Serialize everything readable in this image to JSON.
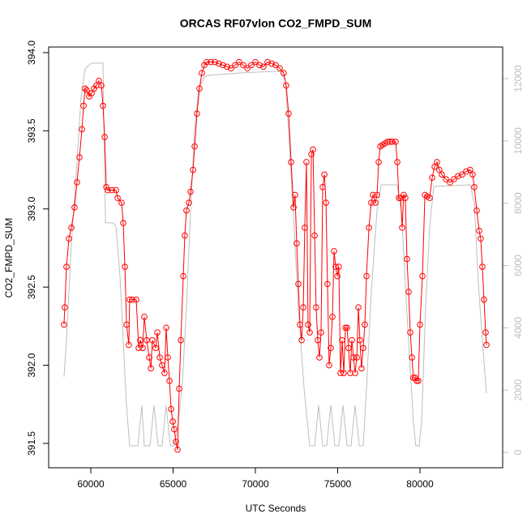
{
  "chart_data": {
    "type": "line",
    "title": "ORCAS RF07vlon CO2_FMPD_SUM",
    "x_label": "UTC Seconds",
    "y_label": "CO2_FMPD_SUM",
    "xlim": [
      57438,
      85025
    ],
    "xticks": [
      60000,
      65000,
      70000,
      75000,
      80000
    ],
    "ylim": [
      391.344,
      394.036
    ],
    "yticks": [
      391.5,
      {
        "value": 392,
        "label": "392.0"
      },
      392.5,
      {
        "value": 393,
        "label": "393.0"
      },
      393.5,
      {
        "value": 394,
        "label": "394.0"
      }
    ],
    "y2lim": [
      -495,
      13016
    ],
    "y2ticks": [
      0,
      2000,
      4000,
      6000,
      8000,
      10000,
      12000
    ],
    "series": [
      {
        "color": "#bebebe",
        "axis": "y2",
        "markers": false,
        "x": [
          58370,
          58520,
          58820,
          59160,
          59410,
          59650,
          60050,
          60740,
          60890,
          61380,
          61530,
          61770,
          61970,
          62170,
          62360,
          62610,
          62860,
          63100,
          63250,
          63600,
          63840,
          64090,
          64330,
          64580,
          64830,
          65070,
          65320,
          65570,
          65810,
          66060,
          66310,
          66550,
          66900,
          67190,
          69260,
          71480,
          71820,
          72070,
          72320,
          72610,
          72960,
          73300,
          73600,
          73840,
          74090,
          74330,
          74580,
          74830,
          75070,
          75320,
          75570,
          75810,
          76060,
          76310,
          76550,
          76750,
          77040,
          77390,
          77640,
          78620,
          78870,
          79110,
          79360,
          79600,
          79750,
          79950,
          80100,
          80340,
          80590,
          80840,
          83050,
          83300,
          83550,
          83790,
          84040
        ],
        "values": [
          2420,
          3590,
          6720,
          9320,
          11410,
          12320,
          12500,
          12500,
          7370,
          7370,
          7240,
          5680,
          3590,
          1510,
          210,
          210,
          210,
          1510,
          210,
          210,
          1510,
          210,
          210,
          1510,
          210,
          210,
          990,
          2290,
          4640,
          7760,
          10360,
          11670,
          12060,
          12110,
          12190,
          12240,
          11930,
          9840,
          7500,
          4640,
          2030,
          210,
          210,
          1510,
          210,
          210,
          1510,
          210,
          210,
          1510,
          210,
          210,
          1510,
          210,
          210,
          2030,
          5160,
          7760,
          8590,
          8590,
          7760,
          5420,
          3070,
          990,
          210,
          210,
          990,
          4640,
          7240,
          8540,
          8590,
          8020,
          5420,
          3590,
          1900
        ]
      },
      {
        "color": "#ff0000",
        "markers": true,
        "x": [
          58370,
          58420,
          58520,
          58670,
          58820,
          59010,
          59160,
          59310,
          59460,
          59560,
          59650,
          59750,
          59900,
          60050,
          60200,
          60340,
          60490,
          60640,
          60740,
          60840,
          60940,
          61030,
          61280,
          61530,
          61630,
          61870,
          61970,
          62070,
          62170,
          62310,
          62360,
          62510,
          62760,
          62910,
          63000,
          63150,
          63250,
          63400,
          63550,
          63650,
          63740,
          63940,
          64040,
          64190,
          64330,
          64480,
          64580,
          64680,
          64780,
          64880,
          64980,
          65070,
          65170,
          65270,
          65370,
          65470,
          65620,
          65710,
          65810,
          65960,
          66060,
          66210,
          66310,
          66450,
          66600,
          66750,
          66900,
          67040,
          67290,
          67540,
          67780,
          68030,
          68280,
          68520,
          68770,
          69010,
          69260,
          69510,
          69750,
          70000,
          70250,
          70490,
          70740,
          70990,
          71230,
          71480,
          71720,
          71870,
          72020,
          72170,
          72320,
          72410,
          72510,
          72610,
          72710,
          72810,
          72910,
          73000,
          73100,
          73200,
          73300,
          73400,
          73500,
          73600,
          73690,
          73790,
          73890,
          73990,
          74090,
          74190,
          74290,
          74380,
          74480,
          74580,
          74680,
          74780,
          74880,
          74980,
          75070,
          75170,
          75270,
          75370,
          75470,
          75570,
          75660,
          75760,
          75860,
          75960,
          76060,
          76160,
          76260,
          76350,
          76450,
          76550,
          76650,
          76750,
          76900,
          77040,
          77140,
          77290,
          77390,
          77490,
          77590,
          77730,
          77880,
          78030,
          78180,
          78320,
          78520,
          78620,
          78720,
          78820,
          78920,
          79010,
          79110,
          79210,
          79310,
          79410,
          79510,
          79600,
          79700,
          79800,
          79900,
          80000,
          80150,
          80300,
          80440,
          80590,
          80740,
          80890,
          81030,
          81180,
          81330,
          81580,
          81820,
          82070,
          82310,
          82560,
          82810,
          83050,
          83200,
          83300,
          83450,
          83600,
          83690,
          83790,
          83890,
          83990,
          84040
        ],
        "values": [
          392.26,
          392.37,
          392.63,
          392.81,
          392.88,
          393.01,
          393.17,
          393.33,
          393.51,
          393.66,
          393.77,
          393.76,
          393.72,
          393.74,
          393.77,
          393.79,
          393.82,
          393.79,
          393.66,
          393.46,
          393.14,
          393.12,
          393.12,
          393.12,
          393.07,
          393.04,
          392.91,
          392.63,
          392.26,
          392.13,
          392.42,
          392.42,
          392.42,
          392.11,
          392.16,
          392.11,
          392.31,
          392.16,
          392.05,
          391.98,
          392.16,
          392.11,
          392.21,
          392.05,
          392.0,
          391.95,
          392.24,
          392.05,
          391.9,
          391.72,
          391.64,
          391.59,
          391.51,
          391.46,
          391.85,
          392.16,
          392.57,
          392.83,
          392.99,
          393.04,
          393.11,
          393.25,
          393.4,
          393.61,
          393.77,
          393.87,
          393.92,
          393.94,
          393.94,
          393.94,
          393.93,
          393.92,
          393.91,
          393.9,
          393.92,
          393.94,
          393.92,
          393.9,
          393.92,
          393.94,
          393.92,
          393.91,
          393.94,
          393.93,
          393.92,
          393.9,
          393.87,
          393.79,
          393.61,
          393.3,
          393.01,
          393.09,
          392.78,
          392.52,
          392.26,
          392.16,
          392.37,
          392.88,
          393.3,
          392.26,
          392.21,
          393.35,
          393.38,
          392.83,
          392.37,
          392.16,
          392.05,
          392.21,
          393.14,
          393.22,
          393.04,
          392.52,
          392.0,
          392.11,
          392.31,
          392.73,
          392.63,
          392.57,
          392.63,
          391.95,
          392.16,
          391.95,
          392.24,
          392.24,
          392.11,
          391.95,
          392.16,
          392.05,
          391.95,
          392.05,
          392.37,
          392.16,
          391.98,
          392.11,
          392.26,
          392.57,
          392.88,
          393.04,
          393.09,
          393.04,
          393.09,
          393.3,
          393.4,
          393.41,
          393.42,
          393.43,
          393.43,
          393.43,
          393.43,
          393.3,
          393.07,
          393.07,
          392.88,
          393.09,
          393.07,
          392.68,
          392.47,
          392.21,
          392.05,
          391.92,
          391.92,
          391.9,
          391.9,
          392.26,
          392.57,
          393.09,
          393.08,
          393.07,
          393.2,
          393.27,
          393.3,
          393.25,
          393.22,
          393.19,
          393.17,
          393.19,
          393.21,
          393.22,
          393.24,
          393.25,
          393.22,
          393.14,
          392.99,
          392.86,
          392.81,
          392.63,
          392.42,
          392.21,
          392.13
        ]
      }
    ]
  }
}
